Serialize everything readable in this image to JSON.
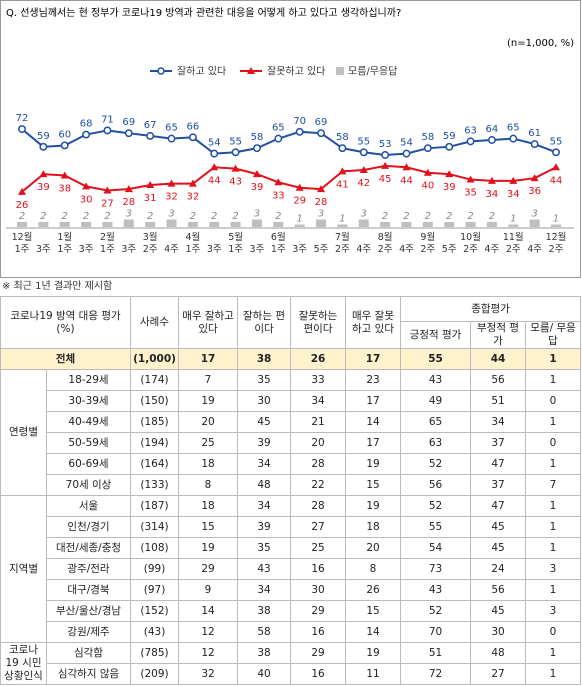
{
  "chart_data": {
    "type": "line",
    "title": "Q. 선생님께서는 현 정부가 코로나19 방역과 관련한 대응을 어떻게 하고 있다고 생각하십니까?",
    "subtitle": "(n=1,000,  %)",
    "categories": [
      "12월\n1주",
      "3주",
      "1월\n1주",
      "3주",
      "2월\n1주",
      "3주",
      "3월\n2주",
      "4주",
      "4월\n1주",
      "3주",
      "5월\n1주",
      "3주",
      "6월\n1주",
      "3주",
      "5주",
      "7월\n2주",
      "4주",
      "8월\n2주",
      "4주",
      "9월\n2주",
      "5주",
      "10월\n2주",
      "4주",
      "11월\n2주",
      "4주",
      "12월\n2주"
    ],
    "series": [
      {
        "name": "잘하고 있다",
        "color": "#1f4ea3",
        "mark": "circle",
        "values": [
          72,
          59,
          60,
          68,
          71,
          69,
          67,
          65,
          66,
          54,
          55,
          58,
          65,
          70,
          69,
          58,
          55,
          53,
          54,
          58,
          59,
          63,
          64,
          65,
          61,
          55
        ]
      },
      {
        "name": "잘못하고 있다",
        "color": "#e3101b",
        "mark": "triangle",
        "values": [
          26,
          39,
          38,
          30,
          27,
          28,
          31,
          32,
          32,
          44,
          43,
          39,
          33,
          29,
          28,
          41,
          42,
          45,
          44,
          40,
          39,
          35,
          34,
          34,
          36,
          44
        ]
      },
      {
        "name": "모름/무응답",
        "color": "#bfbfbf",
        "mark": "bar",
        "values": [
          2,
          2,
          2,
          2,
          2,
          3,
          2,
          3,
          2,
          2,
          2,
          3,
          2,
          1,
          3,
          1,
          3,
          2,
          2,
          2,
          2,
          2,
          2,
          1,
          3,
          1
        ]
      }
    ],
    "ylim": [
      20,
      75
    ],
    "grid": false,
    "legend": "top"
  },
  "footnote": "※ 최근 1년 결과만 제시함",
  "table": {
    "header": {
      "group": "코로나19 방역 대응 평가(%)",
      "n": "사례수",
      "cols": [
        "매우 잘하고 있다",
        "잘하는 편이다",
        "잘못하는 편이다",
        "매우 잘못하고 있다"
      ],
      "summary": "종합평가",
      "summary_cols": [
        "긍정적 평가",
        "부정적 평가",
        "모름/ 무응답"
      ]
    },
    "total": {
      "label": "전체",
      "cells": [
        "(1,000)",
        17,
        38,
        26,
        17,
        55,
        44,
        1
      ]
    },
    "groups": [
      {
        "name": "연령별",
        "rows": [
          [
            "18-29세",
            "(174)",
            7,
            35,
            33,
            23,
            43,
            56,
            1
          ],
          [
            "30-39세",
            "(150)",
            19,
            30,
            34,
            17,
            49,
            51,
            0
          ],
          [
            "40-49세",
            "(185)",
            20,
            45,
            21,
            14,
            65,
            34,
            1
          ],
          [
            "50-59세",
            "(194)",
            25,
            39,
            20,
            17,
            63,
            37,
            0
          ],
          [
            "60-69세",
            "(164)",
            18,
            34,
            28,
            19,
            52,
            47,
            1
          ],
          [
            "70세 이상",
            "(133)",
            8,
            48,
            22,
            15,
            56,
            37,
            7
          ]
        ]
      },
      {
        "name": "지역별",
        "rows": [
          [
            "서울",
            "(187)",
            18,
            34,
            28,
            19,
            52,
            47,
            1
          ],
          [
            "인천/경기",
            "(314)",
            15,
            39,
            27,
            18,
            55,
            45,
            1
          ],
          [
            "대전/세종/충청",
            "(108)",
            19,
            35,
            25,
            20,
            54,
            45,
            1
          ],
          [
            "광주/전라",
            "(99)",
            29,
            43,
            16,
            8,
            73,
            24,
            3
          ],
          [
            "대구/경북",
            "(97)",
            9,
            34,
            30,
            26,
            43,
            56,
            1
          ],
          [
            "부산/울산/경남",
            "(152)",
            14,
            38,
            29,
            15,
            52,
            45,
            3
          ],
          [
            "강원/제주",
            "(43)",
            12,
            58,
            16,
            14,
            70,
            30,
            0
          ]
        ]
      },
      {
        "name": "코로나19 시민 상황인식",
        "rows": [
          [
            "심각함",
            "(785)",
            12,
            38,
            29,
            19,
            51,
            48,
            1
          ],
          [
            "심각하지 않음",
            "(209)",
            32,
            40,
            16,
            11,
            72,
            27,
            1
          ]
        ]
      }
    ]
  }
}
